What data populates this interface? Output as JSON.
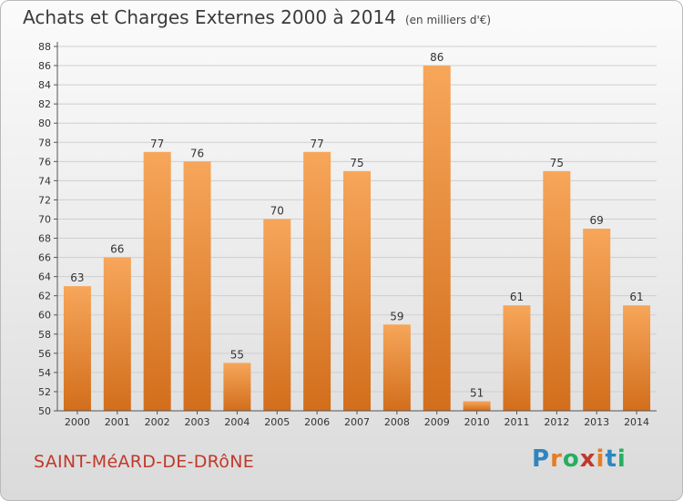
{
  "header": {
    "title": "Achats et Charges Externes 2000 à 2014",
    "unit_note": "(en milliers d'€)"
  },
  "footer": {
    "city": "SAINT-MéARD-DE-DRôNE",
    "logo": "Proxiti",
    "logo_letters": [
      {
        "ch": "P",
        "color": "#2e86c1"
      },
      {
        "ch": "r",
        "color": "#e67e22"
      },
      {
        "ch": "o",
        "color": "#27ae60"
      },
      {
        "ch": "x",
        "color": "#c0392b"
      },
      {
        "ch": "i",
        "color": "#e67e22"
      },
      {
        "ch": "t",
        "color": "#2e86c1"
      },
      {
        "ch": "i",
        "color": "#27ae60"
      }
    ]
  },
  "chart_data": {
    "type": "bar",
    "categories": [
      "2000",
      "2001",
      "2002",
      "2003",
      "2004",
      "2005",
      "2006",
      "2007",
      "2008",
      "2009",
      "2010",
      "2011",
      "2012",
      "2013",
      "2014"
    ],
    "values": [
      63,
      66,
      77,
      76,
      55,
      70,
      77,
      75,
      59,
      86,
      51,
      61,
      75,
      69,
      61
    ],
    "ylim": [
      50,
      88
    ],
    "ytick_step": 2,
    "grid": true,
    "bar_color": "#f0923a"
  }
}
